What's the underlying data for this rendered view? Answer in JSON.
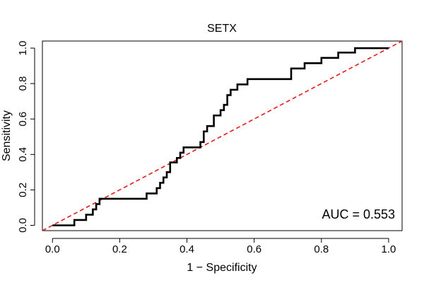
{
  "chart_data": {
    "type": "line",
    "title": "SETX",
    "xlabel": "1 − Specificity",
    "ylabel": "Sensitivity",
    "xlim": [
      -0.03,
      1.04
    ],
    "ylim": [
      -0.03,
      1.04
    ],
    "xticks": [
      0.0,
      0.2,
      0.4,
      0.6,
      0.8,
      1.0
    ],
    "xtick_labels": [
      "0.0",
      "0.2",
      "0.4",
      "0.6",
      "0.8",
      "1.0"
    ],
    "yticks": [
      0.0,
      0.2,
      0.4,
      0.6,
      0.8,
      1.0
    ],
    "ytick_labels": [
      "0.0",
      "0.2",
      "0.4",
      "0.6",
      "0.8",
      "1.0"
    ],
    "annotation": "AUC = 0.553",
    "series": [
      {
        "name": "ROC curve",
        "color": "#000000",
        "style": "solid",
        "x": [
          0.0,
          0.065,
          0.065,
          0.1,
          0.1,
          0.12,
          0.12,
          0.13,
          0.13,
          0.14,
          0.14,
          0.28,
          0.28,
          0.31,
          0.31,
          0.32,
          0.32,
          0.33,
          0.33,
          0.34,
          0.34,
          0.35,
          0.35,
          0.37,
          0.37,
          0.38,
          0.38,
          0.39,
          0.39,
          0.44,
          0.44,
          0.45,
          0.45,
          0.46,
          0.46,
          0.48,
          0.48,
          0.5,
          0.5,
          0.51,
          0.51,
          0.52,
          0.52,
          0.53,
          0.53,
          0.55,
          0.55,
          0.58,
          0.58,
          0.71,
          0.71,
          0.75,
          0.75,
          0.8,
          0.8,
          0.85,
          0.85,
          0.9,
          0.9,
          1.0
        ],
        "y": [
          0.0,
          0.0,
          0.03,
          0.03,
          0.06,
          0.06,
          0.09,
          0.09,
          0.12,
          0.12,
          0.15,
          0.15,
          0.18,
          0.18,
          0.21,
          0.21,
          0.24,
          0.24,
          0.27,
          0.27,
          0.3,
          0.3,
          0.355,
          0.355,
          0.38,
          0.38,
          0.41,
          0.41,
          0.44,
          0.44,
          0.47,
          0.47,
          0.53,
          0.53,
          0.56,
          0.56,
          0.62,
          0.62,
          0.65,
          0.65,
          0.68,
          0.68,
          0.735,
          0.735,
          0.765,
          0.765,
          0.795,
          0.795,
          0.825,
          0.825,
          0.885,
          0.885,
          0.915,
          0.915,
          0.945,
          0.945,
          0.975,
          0.975,
          1.0,
          1.0
        ]
      },
      {
        "name": "Chance line",
        "color": "#e31a1c",
        "style": "dashed",
        "x": [
          -0.03,
          1.04
        ],
        "y": [
          -0.03,
          1.04
        ]
      }
    ]
  }
}
